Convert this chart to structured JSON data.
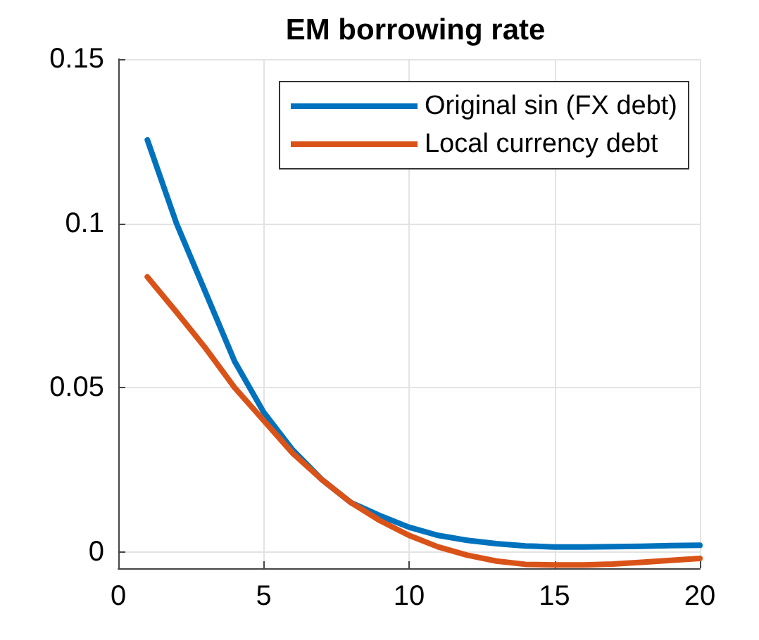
{
  "chart_data": {
    "type": "line",
    "title": "EM borrowing rate",
    "x": [
      1,
      2,
      3,
      4,
      5,
      6,
      7,
      8,
      9,
      10,
      11,
      12,
      13,
      14,
      15,
      16,
      17,
      18,
      19,
      20
    ],
    "series": [
      {
        "name": "Original sin (FX debt)",
        "color": "#0072bd",
        "values": [
          0.1254,
          0.1,
          0.079,
          0.058,
          0.0425,
          0.031,
          0.022,
          0.015,
          0.011,
          0.0075,
          0.005,
          0.0035,
          0.0025,
          0.0018,
          0.0015,
          0.0015,
          0.0016,
          0.0017,
          0.0019,
          0.002
        ]
      },
      {
        "name": "Local currency debt",
        "color": "#d95319",
        "values": [
          0.0837,
          0.073,
          0.062,
          0.05,
          0.04,
          0.03,
          0.022,
          0.015,
          0.0095,
          0.005,
          0.0015,
          -0.001,
          -0.0028,
          -0.0038,
          -0.004,
          -0.004,
          -0.0037,
          -0.0032,
          -0.0026,
          -0.002
        ]
      }
    ],
    "xlim": [
      0,
      20
    ],
    "xticks": [
      0,
      5,
      10,
      15,
      20
    ],
    "ylim": [
      -0.005,
      0.15
    ],
    "yticks": [
      0,
      0.05,
      0.1,
      0.15
    ],
    "grid": true,
    "legend": "top right",
    "marker": "none",
    "line_style": "solid"
  }
}
